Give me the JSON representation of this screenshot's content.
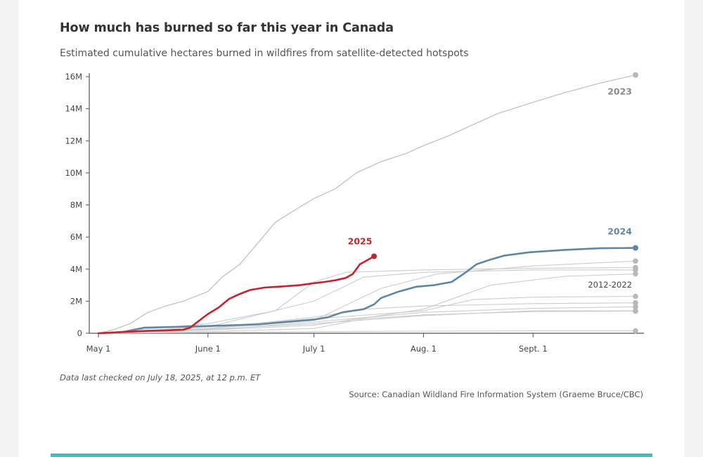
{
  "page": {
    "background": "#f4f4f4",
    "card": "#ffffff",
    "accent_bar": "#49b9bc"
  },
  "note": "Data last checked on July 18, 2025, at 12 p.m. ET",
  "source": "Source: Canadian Wildland Fire Information System (Graeme Bruce/CBC)",
  "chart_data": {
    "type": "line",
    "title": "How much has burned so far this year in Canada",
    "subtitle": "Estimated cumulative hectares burned in wildfires from satellite-detected hotspots",
    "xlabel": "",
    "ylabel": "",
    "x_range": [
      "2025-05-01",
      "2025-09-30"
    ],
    "ylim": [
      0,
      16000000
    ],
    "grid": false,
    "x_ticks": [
      {
        "date": "2025-05-01",
        "label": "May 1"
      },
      {
        "date": "2025-06-01",
        "label": "June 1"
      },
      {
        "date": "2025-07-01",
        "label": "July 1"
      },
      {
        "date": "2025-08-01",
        "label": "Aug. 1"
      },
      {
        "date": "2025-09-01",
        "label": "Sept. 1"
      }
    ],
    "y_ticks": [
      {
        "value": 0,
        "label": "0"
      },
      {
        "value": 2000000,
        "label": "2M"
      },
      {
        "value": 4000000,
        "label": "4M"
      },
      {
        "value": 6000000,
        "label": "6M"
      },
      {
        "value": 8000000,
        "label": "8M"
      },
      {
        "value": 10000000,
        "label": "10M"
      },
      {
        "value": 12000000,
        "label": "12M"
      },
      {
        "value": 14000000,
        "label": "14M"
      },
      {
        "value": 16000000,
        "label": "16M"
      }
    ],
    "colors": {
      "2025": "#c8232c",
      "2024": "#5f86a6",
      "2023": "#c2c2c2",
      "history": "#cccccc",
      "end_point": "#b8b8b8"
    },
    "series": [
      {
        "name": "2025",
        "label": "2025",
        "role": "current",
        "points": [
          [
            "2025-05-01",
            0
          ],
          [
            "2025-05-10",
            100000
          ],
          [
            "2025-05-15",
            150000
          ],
          [
            "2025-05-20",
            180000
          ],
          [
            "2025-05-25",
            220000
          ],
          [
            "2025-05-27",
            350000
          ],
          [
            "2025-05-29",
            700000
          ],
          [
            "2025-06-01",
            1200000
          ],
          [
            "2025-06-04",
            1600000
          ],
          [
            "2025-06-07",
            2150000
          ],
          [
            "2025-06-10",
            2450000
          ],
          [
            "2025-06-13",
            2700000
          ],
          [
            "2025-06-17",
            2850000
          ],
          [
            "2025-06-22",
            2920000
          ],
          [
            "2025-06-27",
            3000000
          ],
          [
            "2025-07-01",
            3120000
          ],
          [
            "2025-07-04",
            3200000
          ],
          [
            "2025-07-07",
            3300000
          ],
          [
            "2025-07-10",
            3450000
          ],
          [
            "2025-07-12",
            3700000
          ],
          [
            "2025-07-14",
            4300000
          ],
          [
            "2025-07-16",
            4550000
          ],
          [
            "2025-07-18",
            4800000
          ]
        ]
      },
      {
        "name": "2024",
        "label": "2024",
        "role": "highlight",
        "points": [
          [
            "2025-05-01",
            0
          ],
          [
            "2025-05-08",
            80000
          ],
          [
            "2025-05-14",
            350000
          ],
          [
            "2025-05-20",
            380000
          ],
          [
            "2025-06-01",
            450000
          ],
          [
            "2025-06-15",
            550000
          ],
          [
            "2025-07-01",
            850000
          ],
          [
            "2025-07-05",
            1000000
          ],
          [
            "2025-07-09",
            1300000
          ],
          [
            "2025-07-15",
            1500000
          ],
          [
            "2025-07-18",
            1800000
          ],
          [
            "2025-07-20",
            2200000
          ],
          [
            "2025-07-25",
            2600000
          ],
          [
            "2025-07-30",
            2900000
          ],
          [
            "2025-08-04",
            3000000
          ],
          [
            "2025-08-09",
            3200000
          ],
          [
            "2025-08-13",
            3800000
          ],
          [
            "2025-08-16",
            4300000
          ],
          [
            "2025-08-20",
            4600000
          ],
          [
            "2025-08-24",
            4850000
          ],
          [
            "2025-08-31",
            5050000
          ],
          [
            "2025-09-10",
            5200000
          ],
          [
            "2025-09-20",
            5300000
          ],
          [
            "2025-09-30",
            5320000
          ]
        ]
      },
      {
        "name": "2023",
        "label": "2023",
        "role": "context",
        "points": [
          [
            "2025-05-01",
            0
          ],
          [
            "2025-05-05",
            200000
          ],
          [
            "2025-05-10",
            600000
          ],
          [
            "2025-05-15",
            1300000
          ],
          [
            "2025-05-20",
            1700000
          ],
          [
            "2025-05-25",
            2000000
          ],
          [
            "2025-06-01",
            2600000
          ],
          [
            "2025-06-05",
            3500000
          ],
          [
            "2025-06-10",
            4300000
          ],
          [
            "2025-06-15",
            5600000
          ],
          [
            "2025-06-20",
            6900000
          ],
          [
            "2025-06-25",
            7600000
          ],
          [
            "2025-07-01",
            8400000
          ],
          [
            "2025-07-07",
            9000000
          ],
          [
            "2025-07-13",
            10000000
          ],
          [
            "2025-07-20",
            10700000
          ],
          [
            "2025-07-27",
            11200000
          ],
          [
            "2025-08-01",
            11700000
          ],
          [
            "2025-08-08",
            12300000
          ],
          [
            "2025-08-15",
            13000000
          ],
          [
            "2025-08-22",
            13700000
          ],
          [
            "2025-09-01",
            14400000
          ],
          [
            "2025-09-10",
            15000000
          ],
          [
            "2025-09-20",
            15600000
          ],
          [
            "2025-09-30",
            16100000
          ]
        ]
      }
    ],
    "history_label": "2012-2022",
    "history_series": [
      {
        "points": [
          [
            "2025-05-01",
            0
          ],
          [
            "2025-06-01",
            600000
          ],
          [
            "2025-06-20",
            1400000
          ],
          [
            "2025-07-01",
            3200000
          ],
          [
            "2025-07-10",
            3800000
          ],
          [
            "2025-08-01",
            3950000
          ],
          [
            "2025-09-01",
            4050000
          ],
          [
            "2025-09-30",
            4100000
          ]
        ]
      },
      {
        "points": [
          [
            "2025-05-01",
            0
          ],
          [
            "2025-06-01",
            400000
          ],
          [
            "2025-07-01",
            2000000
          ],
          [
            "2025-07-15",
            3500000
          ],
          [
            "2025-08-01",
            3800000
          ],
          [
            "2025-09-01",
            3950000
          ],
          [
            "2025-09-30",
            3950000
          ]
        ]
      },
      {
        "points": [
          [
            "2025-05-01",
            0
          ],
          [
            "2025-06-01",
            300000
          ],
          [
            "2025-07-01",
            800000
          ],
          [
            "2025-07-20",
            2800000
          ],
          [
            "2025-08-05",
            3700000
          ],
          [
            "2025-09-01",
            4200000
          ],
          [
            "2025-09-30",
            4500000
          ]
        ]
      },
      {
        "points": [
          [
            "2025-05-01",
            0
          ],
          [
            "2025-06-01",
            200000
          ],
          [
            "2025-07-01",
            500000
          ],
          [
            "2025-08-01",
            1500000
          ],
          [
            "2025-08-20",
            3000000
          ],
          [
            "2025-09-10",
            3550000
          ],
          [
            "2025-09-30",
            3700000
          ]
        ]
      },
      {
        "points": [
          [
            "2025-05-01",
            0
          ],
          [
            "2025-06-01",
            400000
          ],
          [
            "2025-07-01",
            900000
          ],
          [
            "2025-08-01",
            1400000
          ],
          [
            "2025-08-15",
            2100000
          ],
          [
            "2025-09-01",
            2250000
          ],
          [
            "2025-09-30",
            2300000
          ]
        ]
      },
      {
        "points": [
          [
            "2025-05-01",
            0
          ],
          [
            "2025-06-01",
            300000
          ],
          [
            "2025-07-01",
            1000000
          ],
          [
            "2025-07-15",
            1500000
          ],
          [
            "2025-08-01",
            1700000
          ],
          [
            "2025-09-01",
            1850000
          ],
          [
            "2025-09-30",
            1900000
          ]
        ]
      },
      {
        "points": [
          [
            "2025-05-01",
            0
          ],
          [
            "2025-06-01",
            200000
          ],
          [
            "2025-07-01",
            700000
          ],
          [
            "2025-08-01",
            1300000
          ],
          [
            "2025-09-01",
            1550000
          ],
          [
            "2025-09-30",
            1650000
          ]
        ]
      },
      {
        "points": [
          [
            "2025-05-01",
            0
          ],
          [
            "2025-06-01",
            250000
          ],
          [
            "2025-07-01",
            600000
          ],
          [
            "2025-08-01",
            1100000
          ],
          [
            "2025-09-01",
            1400000
          ],
          [
            "2025-09-30",
            1400000
          ]
        ]
      },
      {
        "points": [
          [
            "2025-05-01",
            0
          ],
          [
            "2025-06-01",
            100000
          ],
          [
            "2025-07-01",
            300000
          ],
          [
            "2025-07-15",
            900000
          ],
          [
            "2025-08-01",
            1150000
          ],
          [
            "2025-09-01",
            1350000
          ],
          [
            "2025-09-30",
            1380000
          ]
        ]
      },
      {
        "points": [
          [
            "2025-05-01",
            0
          ],
          [
            "2025-06-01",
            50000
          ],
          [
            "2025-07-01",
            100000
          ],
          [
            "2025-08-01",
            130000
          ],
          [
            "2025-09-01",
            150000
          ],
          [
            "2025-09-30",
            150000
          ]
        ]
      }
    ]
  }
}
